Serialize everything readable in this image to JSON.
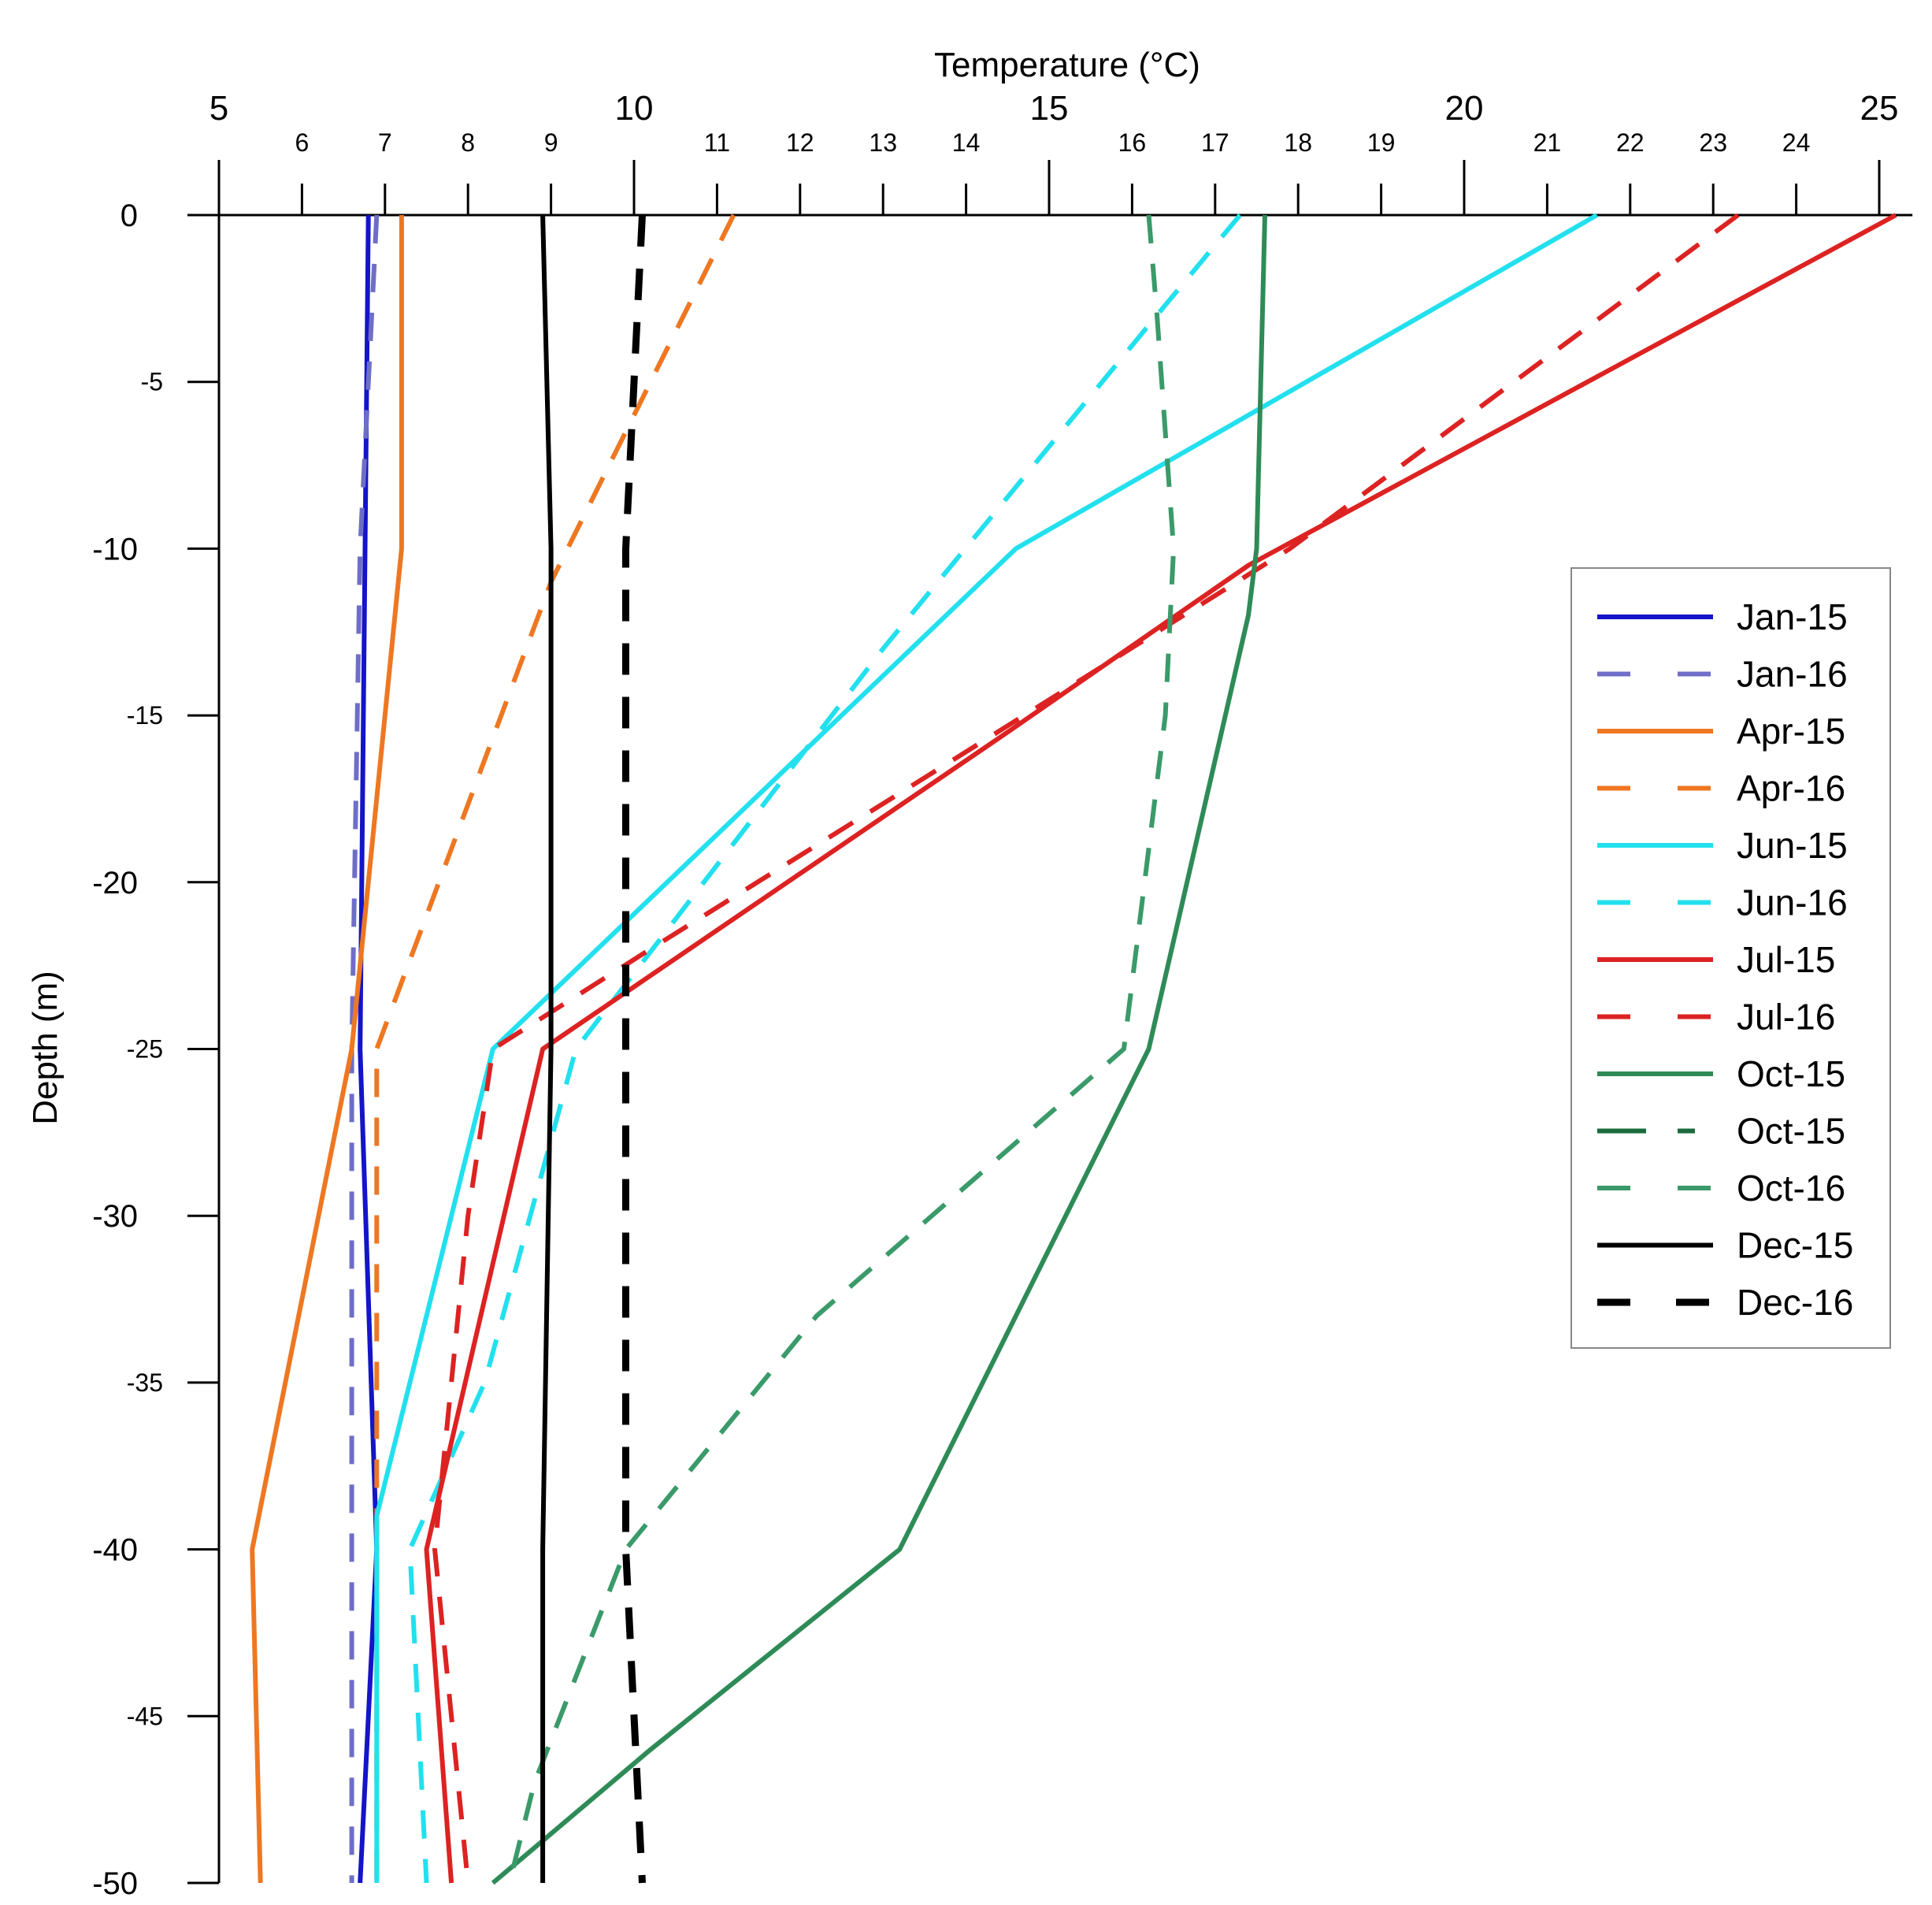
{
  "chart_data": {
    "type": "line",
    "title": "",
    "xlabel": "Temperature (°C)",
    "ylabel": "Depth (m)",
    "xlim": [
      5,
      25.4
    ],
    "ylim": [
      -50,
      0
    ],
    "x_major_ticks": [
      5,
      10,
      15,
      20,
      25
    ],
    "x_minor_ticks": [
      6,
      7,
      8,
      9,
      11,
      12,
      13,
      14,
      16,
      17,
      18,
      19,
      21,
      22,
      23,
      24
    ],
    "y_major_ticks": [
      0,
      -10,
      -20,
      -30,
      -40,
      -50
    ],
    "y_minor_ticks": [
      -5,
      -15,
      -25,
      -35,
      -45
    ],
    "x_axis_position": "top",
    "legend_position": "right",
    "grid": false,
    "series": [
      {
        "name": "Jan-15",
        "color": "#1414c8",
        "style": "solid",
        "points": [
          [
            6.8,
            0
          ],
          [
            6.7,
            -25
          ],
          [
            6.9,
            -40
          ],
          [
            6.7,
            -50
          ]
        ]
      },
      {
        "name": "Jan-16",
        "color": "#6e6ec8",
        "style": "dash",
        "points": [
          [
            6.9,
            0
          ],
          [
            6.7,
            -10
          ],
          [
            6.6,
            -25
          ],
          [
            6.6,
            -50
          ]
        ]
      },
      {
        "name": "Apr-15",
        "color": "#ee7722",
        "style": "solid",
        "points": [
          [
            7.2,
            0
          ],
          [
            7.2,
            -10
          ],
          [
            6.6,
            -25
          ],
          [
            5.4,
            -40
          ],
          [
            5.5,
            -50
          ]
        ]
      },
      {
        "name": "Apr-16",
        "color": "#ee7722",
        "style": "dash",
        "points": [
          [
            11.2,
            0
          ],
          [
            10,
            -6
          ],
          [
            9,
            -11
          ],
          [
            6.9,
            -25
          ],
          [
            6.9,
            -50
          ]
        ]
      },
      {
        "name": "Jun-15",
        "color": "#22e0ee",
        "style": "solid",
        "points": [
          [
            21.6,
            0
          ],
          [
            14.6,
            -10
          ],
          [
            8.3,
            -25
          ],
          [
            6.9,
            -39
          ],
          [
            6.9,
            -50
          ]
        ]
      },
      {
        "name": "Jun-16",
        "color": "#22e0ee",
        "style": "dash",
        "points": [
          [
            17.3,
            0
          ],
          [
            16.3,
            -3
          ],
          [
            13.0,
            -13
          ],
          [
            9.3,
            -25
          ],
          [
            8.2,
            -35
          ],
          [
            7.3,
            -40
          ],
          [
            7.5,
            -50
          ]
        ]
      },
      {
        "name": "Jul-15",
        "color": "#dd2222",
        "style": "solid",
        "points": [
          [
            25.2,
            0
          ],
          [
            17.4,
            -10.5
          ],
          [
            14.5,
            -15.5
          ],
          [
            8.9,
            -25
          ],
          [
            7.5,
            -40
          ],
          [
            7.8,
            -50
          ]
        ]
      },
      {
        "name": "Jul-16",
        "color": "#dd2222",
        "style": "dash",
        "points": [
          [
            23.3,
            0
          ],
          [
            17.9,
            -10
          ],
          [
            14.7,
            -15
          ],
          [
            10.2,
            -22
          ],
          [
            8.3,
            -25
          ],
          [
            8.0,
            -30
          ],
          [
            7.6,
            -40
          ],
          [
            8.0,
            -50
          ]
        ]
      },
      {
        "name": "Oct-15",
        "color": "#2e8b57",
        "style": "solid",
        "points": [
          [
            17.6,
            0
          ],
          [
            17.5,
            -10
          ],
          [
            17.4,
            -12
          ],
          [
            16.2,
            -25
          ],
          [
            13.2,
            -40
          ],
          [
            10.2,
            -46
          ],
          [
            8.3,
            -50
          ]
        ]
      },
      {
        "name": "Oct-15",
        "color": "#1a6b3c",
        "style": "longdash",
        "points": []
      },
      {
        "name": "Oct-16",
        "color": "#3a9a6a",
        "style": "dash",
        "points": [
          [
            16.2,
            0
          ],
          [
            16.3,
            -3
          ],
          [
            16.5,
            -10
          ],
          [
            16.4,
            -15
          ],
          [
            15.9,
            -25
          ],
          [
            12.2,
            -33
          ],
          [
            9.9,
            -40
          ],
          [
            8.8,
            -47
          ],
          [
            8.5,
            -50
          ]
        ]
      },
      {
        "name": "Dec-15",
        "color": "#000000",
        "style": "solid",
        "points": [
          [
            8.9,
            0
          ],
          [
            9.0,
            -10
          ],
          [
            9.0,
            -25
          ],
          [
            8.9,
            -40
          ],
          [
            8.9,
            -50
          ]
        ]
      },
      {
        "name": "Dec-16",
        "color": "#000000",
        "style": "bigdash",
        "points": [
          [
            10.1,
            0
          ],
          [
            9.9,
            -10
          ],
          [
            9.9,
            -25
          ],
          [
            9.9,
            -40
          ],
          [
            10.1,
            -50
          ]
        ]
      }
    ]
  }
}
